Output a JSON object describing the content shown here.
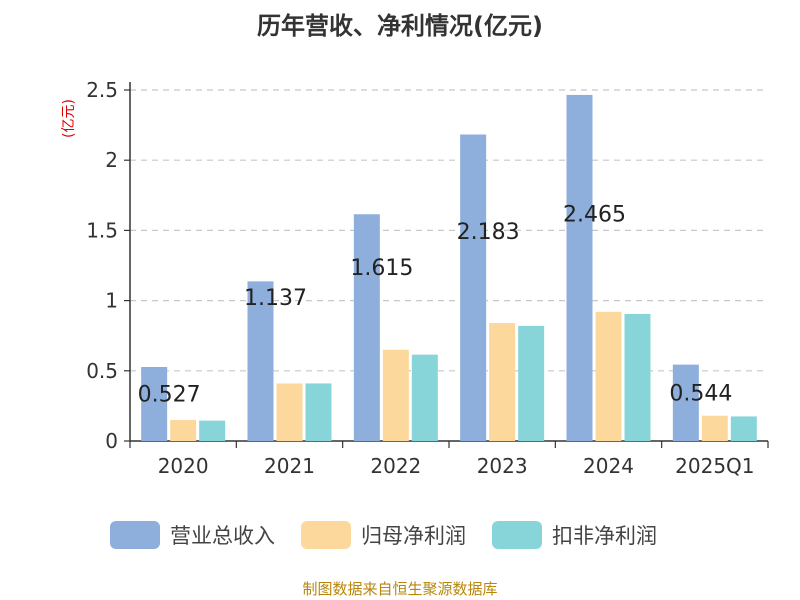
{
  "header": {
    "title": "历年营收、净利情况(亿元)"
  },
  "footer": {
    "source": "制图数据来自恒生聚源数据库"
  },
  "chart_data": {
    "type": "bar",
    "title": "历年营收、净利情况(亿元)",
    "ylabel": "(亿元)",
    "xlabel": "",
    "ylim": [
      0,
      2.5
    ],
    "yticks": [
      0,
      0.5,
      1,
      1.5,
      2,
      2.5
    ],
    "ytick_labels": [
      "0",
      "0.5",
      "1",
      "1.5",
      "2",
      "2.5"
    ],
    "categories": [
      "2020",
      "2021",
      "2022",
      "2023",
      "2024",
      "2025Q1"
    ],
    "series": [
      {
        "name": "营业总收入",
        "color": "#8eaedb",
        "values": [
          0.527,
          1.137,
          1.615,
          2.183,
          2.465,
          0.544
        ]
      },
      {
        "name": "归母净利润",
        "color": "#fdd89d",
        "values": [
          0.15,
          0.41,
          0.65,
          0.84,
          0.92,
          0.18
        ]
      },
      {
        "name": "扣非净利润",
        "color": "#88d5d9",
        "values": [
          0.145,
          0.41,
          0.615,
          0.82,
          0.905,
          0.175
        ]
      }
    ],
    "data_labels": [
      "0.527",
      "1.137",
      "1.615",
      "2.183",
      "2.465",
      "0.544"
    ],
    "grid": true,
    "legend_position": "bottom"
  }
}
